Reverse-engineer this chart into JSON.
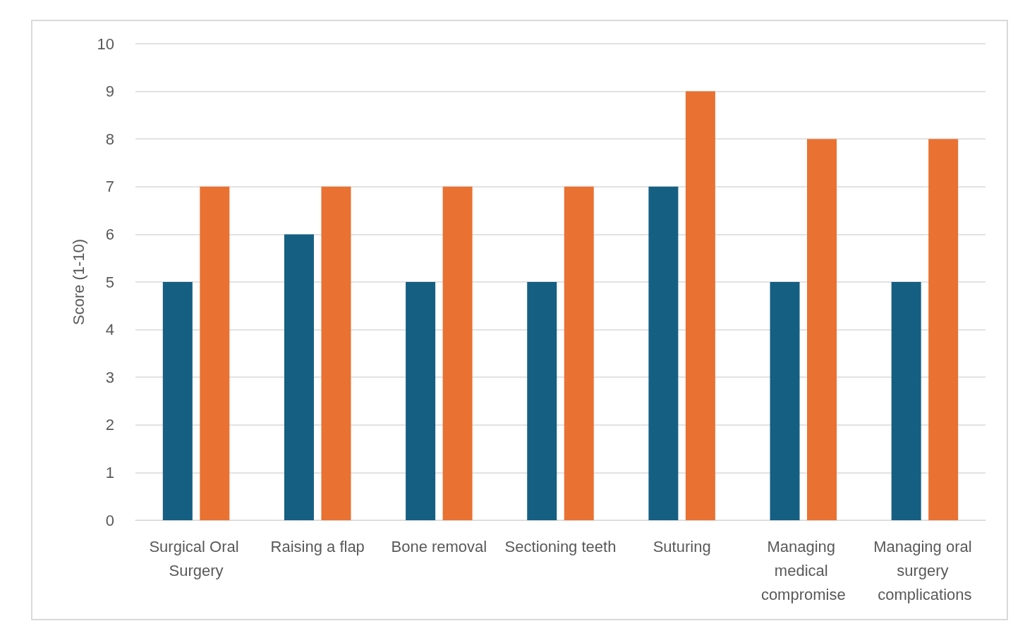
{
  "chart_data": {
    "type": "bar",
    "ylabel": "Score (1-10)",
    "categories": [
      "Surgical Oral Surgery",
      "Raising a flap",
      "Bone removal",
      "Sectioning teeth",
      "Suturing",
      "Managing medical compromise",
      "Managing oral surgery complications"
    ],
    "series": [
      {
        "color": "#155f82",
        "values": [
          5,
          6,
          5,
          5,
          7,
          5,
          5
        ]
      },
      {
        "color": "#e97132",
        "values": [
          7,
          7,
          7,
          7,
          9,
          8,
          8
        ]
      }
    ],
    "ylim": [
      0,
      10
    ],
    "yticks": [
      0,
      1,
      2,
      3,
      4,
      5,
      6,
      7,
      8,
      9,
      10
    ],
    "grid": "y"
  }
}
